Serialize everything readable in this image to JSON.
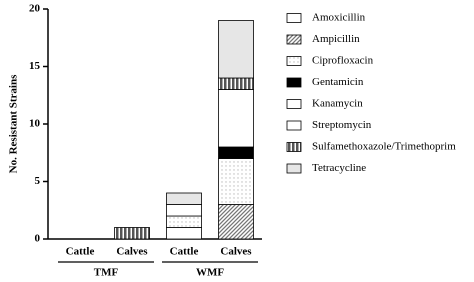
{
  "chart_data": {
    "type": "stacked-bar",
    "y_label": "No. Resistant Strains",
    "categories": [
      "Cattle",
      "Calves",
      "Cattle",
      "Calves"
    ],
    "group_labels": [
      "TMF",
      "WMF"
    ],
    "ylim": [
      0,
      20
    ],
    "yticks": [
      0,
      5,
      10,
      15,
      20
    ],
    "series": [
      {
        "name": "Amoxicillin",
        "color": "#ffffff",
        "pattern": "none",
        "values": [
          0,
          0,
          1,
          0
        ]
      },
      {
        "name": "Ampicillin",
        "color": "#777777",
        "pattern": "diagonal",
        "values": [
          0,
          0,
          0,
          3
        ]
      },
      {
        "name": "Ciprofloxacin",
        "color": "#bbbbbb",
        "pattern": "dots",
        "values": [
          0,
          0,
          1,
          4
        ]
      },
      {
        "name": "Gentamicin",
        "color": "#000000",
        "pattern": "none",
        "values": [
          0,
          0,
          0,
          1
        ]
      },
      {
        "name": "Kanamycin",
        "color": "#ffffff",
        "pattern": "none",
        "values": [
          0,
          0,
          1,
          5
        ]
      },
      {
        "name": "Streptomycin",
        "color": "#ffffff",
        "pattern": "none",
        "values": [
          0,
          0,
          0,
          0
        ]
      },
      {
        "name": "Sulfamethoxazole/Trimethoprim",
        "color": "#555555",
        "pattern": "vertical",
        "values": [
          0,
          1,
          0,
          1
        ]
      },
      {
        "name": "Tetracycline",
        "color": "#e6e6e6",
        "pattern": "none",
        "values": [
          0,
          0,
          1,
          5
        ]
      }
    ]
  }
}
